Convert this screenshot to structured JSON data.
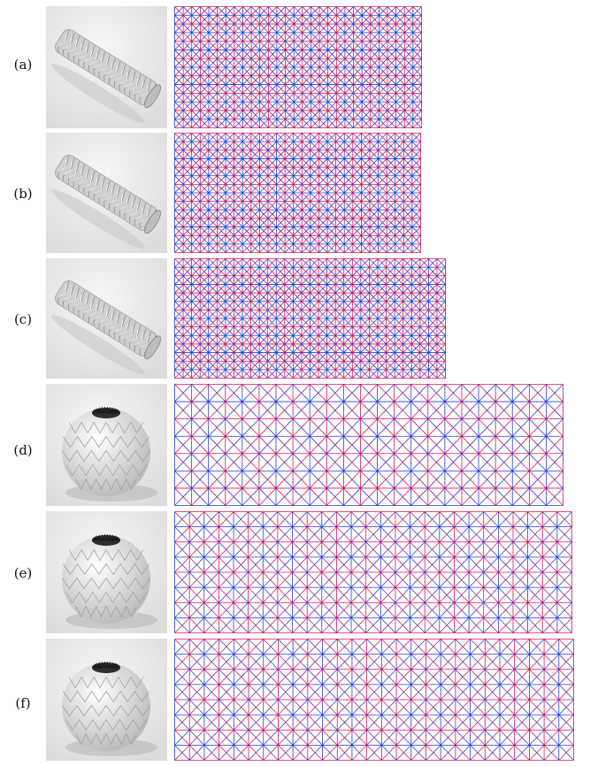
{
  "panels": [
    {
      "label": "(a)",
      "shape": "cylinder",
      "mountain_color": "#d4145a",
      "valley_color": "#2a3bd6"
    },
    {
      "label": "(b)",
      "shape": "cylinder",
      "mountain_color": "#d4145a",
      "valley_color": "#2a3bd6"
    },
    {
      "label": "(c)",
      "shape": "cylinder",
      "mountain_color": "#d4145a",
      "valley_color": "#2a3bd6"
    },
    {
      "label": "(d)",
      "shape": "sphere",
      "mountain_color": "#d4145a",
      "valley_color": "#2a3bd6"
    },
    {
      "label": "(e)",
      "shape": "sphere",
      "mountain_color": "#d4145a",
      "valley_color": "#2a3bd6"
    },
    {
      "label": "(f)",
      "shape": "sphere",
      "mountain_color": "#d4145a",
      "valley_color": "#2a3bd6"
    }
  ]
}
